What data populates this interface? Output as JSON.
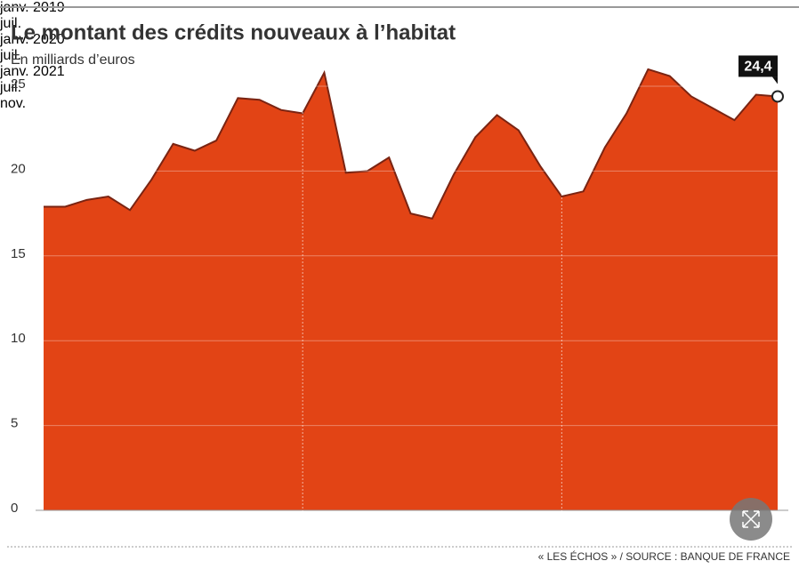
{
  "chart_data": {
    "type": "area",
    "title": "Le montant des crédits nouveaux à l’habitat",
    "subtitle": "En milliards d’euros",
    "source": "« LES ÉCHOS » / SOURCE : BANQUE DE FRANCE",
    "categories": [
      "janv. 2019",
      null,
      null,
      null,
      null,
      null,
      "juil.",
      null,
      null,
      null,
      null,
      null,
      "janv. 2020",
      null,
      null,
      null,
      null,
      null,
      "juil.",
      null,
      null,
      null,
      null,
      null,
      "janv. 2021",
      null,
      null,
      null,
      null,
      null,
      "juil.",
      null,
      null,
      null,
      "nov."
    ],
    "values": [
      17.9,
      17.9,
      18.3,
      18.5,
      17.7,
      19.5,
      21.6,
      21.2,
      21.8,
      24.3,
      24.2,
      23.6,
      23.4,
      25.8,
      19.9,
      20.0,
      20.8,
      17.5,
      17.2,
      19.8,
      22.0,
      23.3,
      22.4,
      20.3,
      18.5,
      18.8,
      21.4,
      23.4,
      26.0,
      25.6,
      24.4,
      23.7,
      23.0,
      24.5,
      24.4
    ],
    "value_labels": [
      null,
      null,
      null,
      null,
      null,
      null,
      null,
      null,
      null,
      null,
      null,
      null,
      null,
      null,
      null,
      null,
      null,
      null,
      null,
      null,
      null,
      null,
      null,
      null,
      null,
      null,
      null,
      null,
      null,
      null,
      null,
      null,
      null,
      null,
      "24,4"
    ],
    "color": "#e24415",
    "line_color": "#7a2412",
    "ylim": [
      0,
      25
    ],
    "yticks": [
      0,
      5,
      10,
      15,
      20,
      25
    ],
    "grid": true
  }
}
